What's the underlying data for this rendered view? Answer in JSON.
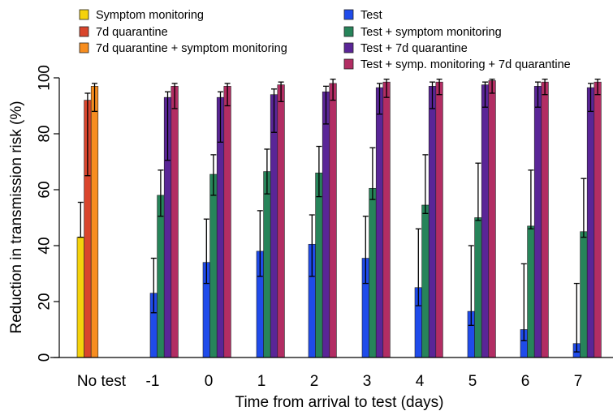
{
  "chart_data": {
    "type": "bar",
    "xlabel": "Time from arrival to test (days)",
    "ylabel": "Reduction in transmission risk (%)",
    "ylim": [
      0,
      100
    ],
    "yticks": [
      0,
      20,
      40,
      60,
      80,
      100
    ],
    "grid": false,
    "legend_position": "top",
    "categories": [
      "No test",
      "-1",
      "0",
      "1",
      "2",
      "3",
      "4",
      "5",
      "6",
      "7"
    ],
    "series": [
      {
        "name": "Symptom monitoring",
        "color": "#f5d20c",
        "values": [
          43,
          null,
          null,
          null,
          null,
          null,
          null,
          null,
          null,
          null
        ],
        "upper": [
          55.5,
          null,
          null,
          null,
          null,
          null,
          null,
          null,
          null,
          null
        ],
        "lower": [
          43,
          null,
          null,
          null,
          null,
          null,
          null,
          null,
          null,
          null
        ]
      },
      {
        "name": "7d quarantine",
        "color": "#d9452c",
        "values": [
          92,
          null,
          null,
          null,
          null,
          null,
          null,
          null,
          null,
          null
        ],
        "upper": [
          94.5,
          null,
          null,
          null,
          null,
          null,
          null,
          null,
          null,
          null
        ],
        "lower": [
          65,
          null,
          null,
          null,
          null,
          null,
          null,
          null,
          null,
          null
        ]
      },
      {
        "name": "7d quarantine + symptom monitoring",
        "color": "#f78d1f",
        "values": [
          97,
          null,
          null,
          null,
          null,
          null,
          null,
          null,
          null,
          null
        ],
        "upper": [
          98,
          null,
          null,
          null,
          null,
          null,
          null,
          null,
          null,
          null
        ],
        "lower": [
          88,
          null,
          null,
          null,
          null,
          null,
          null,
          null,
          null,
          null
        ]
      },
      {
        "name": "Test",
        "color": "#1f4bea",
        "values": [
          null,
          23,
          34,
          38,
          40.5,
          35.5,
          25,
          16.5,
          10,
          5
        ],
        "upper": [
          null,
          35.5,
          49.5,
          52.5,
          51,
          50.5,
          46,
          40,
          33.5,
          26.5
        ],
        "lower": [
          null,
          16,
          26.5,
          29,
          29,
          26.5,
          18.5,
          11.5,
          6,
          2
        ]
      },
      {
        "name": "Test + symptom monitoring",
        "color": "#27845a",
        "values": [
          null,
          58,
          65.5,
          66.5,
          66,
          60.5,
          54.5,
          50,
          47,
          45
        ],
        "upper": [
          null,
          67,
          72.5,
          74.5,
          75.5,
          75,
          72.5,
          69.5,
          67,
          64
        ],
        "lower": [
          null,
          50.5,
          58,
          58.5,
          57.5,
          56.5,
          51.5,
          49,
          46,
          43
        ]
      },
      {
        "name": "Test + 7d quarantine",
        "color": "#5a2597",
        "values": [
          null,
          93,
          93,
          94,
          95,
          96.5,
          97,
          97.5,
          97,
          96.5
        ],
        "upper": [
          null,
          95,
          95,
          96,
          97,
          98,
          98.5,
          98.5,
          98.5,
          98
        ],
        "lower": [
          null,
          70.5,
          77,
          80.5,
          83.5,
          87,
          89,
          89.5,
          89.5,
          88
        ]
      },
      {
        "name": "Test + symp. monitoring + 7d quarantine",
        "color": "#b22d63",
        "values": [
          null,
          97,
          97,
          97.5,
          98,
          98.5,
          98.5,
          99,
          98.5,
          98.5
        ],
        "upper": [
          null,
          98,
          98,
          98.5,
          99.5,
          99.5,
          99.5,
          99.5,
          99.5,
          99.5
        ],
        "lower": [
          null,
          89,
          90,
          91.5,
          92,
          93,
          94,
          94.5,
          94,
          94
        ]
      }
    ]
  }
}
